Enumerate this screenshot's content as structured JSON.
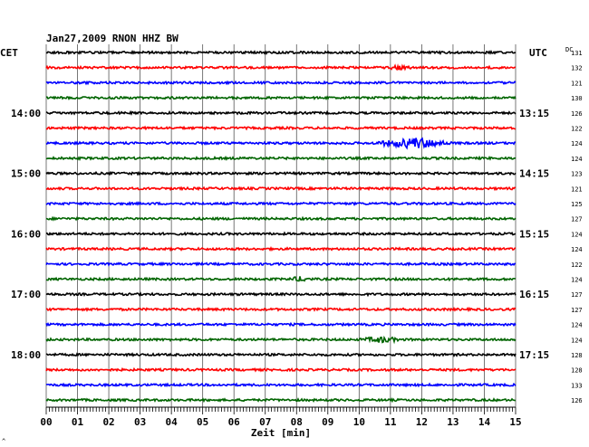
{
  "chart_data": {
    "type": "line",
    "title": "Jan27,2009   RNON HHZ BW",
    "left_axis_label": "CET",
    "right_axis_label": "UTC",
    "dc_label": "DC",
    "xlabel": "Zeit [min]",
    "xlim": [
      0,
      15
    ],
    "x_tick_labels": [
      "00",
      "01",
      "02",
      "03",
      "04",
      "05",
      "06",
      "07",
      "08",
      "09",
      "10",
      "11",
      "12",
      "13",
      "14",
      "15"
    ],
    "left_time_labels": [
      {
        "row": 4,
        "text": "14:00"
      },
      {
        "row": 8,
        "text": "15:00"
      },
      {
        "row": 12,
        "text": "16:00"
      },
      {
        "row": 16,
        "text": "17:00"
      },
      {
        "row": 20,
        "text": "18:00"
      }
    ],
    "right_time_labels": [
      {
        "row": 4,
        "text": "13:15"
      },
      {
        "row": 8,
        "text": "14:15"
      },
      {
        "row": 12,
        "text": "15:15"
      },
      {
        "row": 16,
        "text": "16:15"
      },
      {
        "row": 20,
        "text": "17:15"
      }
    ],
    "dc_values": [
      "131",
      "132",
      "121",
      "130",
      "126",
      "122",
      "124",
      "124",
      "123",
      "121",
      "125",
      "127",
      "124",
      "124",
      "122",
      "124",
      "127",
      "127",
      "124",
      "124",
      "128",
      "128",
      "133",
      "126"
    ],
    "trace_colors": [
      "#000000",
      "#ff0000",
      "#0000ff",
      "#006400"
    ],
    "events": [
      {
        "row": 1,
        "minute": 11.2,
        "amplitude": 1.6,
        "duration_min": 0.6
      },
      {
        "row": 6,
        "minute": 11.8,
        "amplitude": 5.5,
        "duration_min": 1.2
      },
      {
        "row": 6,
        "minute": 10.9,
        "amplitude": 2.0,
        "duration_min": 0.5
      },
      {
        "row": 15,
        "minute": 8.1,
        "amplitude": 2.0,
        "duration_min": 0.4
      },
      {
        "row": 19,
        "minute": 10.7,
        "amplitude": 2.6,
        "duration_min": 0.7
      }
    ]
  },
  "footer_mark": "^"
}
